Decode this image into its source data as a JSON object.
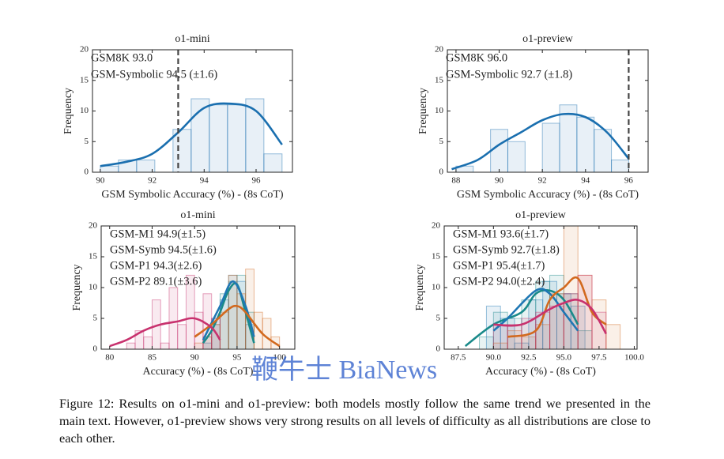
{
  "chart_data": [
    {
      "type": "histogram",
      "title": "o1-mini",
      "xlabel": "GSM Symbolic Accuracy (%) - (8s CoT)",
      "ylabel": "Frequency",
      "xlim": [
        89.7,
        97.4
      ],
      "ylim": [
        0,
        20
      ],
      "xticks": [
        90,
        92,
        94,
        96
      ],
      "yticks": [
        0,
        5,
        10,
        15,
        20
      ],
      "reference": {
        "label": "GSM8K 93.0",
        "value": 93.0
      },
      "series": [
        {
          "name": "GSM-Symbolic 94.5 (±1.6)",
          "color": "#1a6faf",
          "bins": [
            90.0,
            90.7,
            91.4,
            92.1,
            92.8,
            93.5,
            94.2,
            94.9,
            95.6,
            96.3,
            97.0
          ],
          "counts": [
            1,
            2,
            2,
            0,
            7,
            12,
            11,
            11,
            12,
            3
          ],
          "curve_x": [
            90,
            91,
            92,
            93,
            94,
            95,
            96,
            97
          ],
          "curve_y": [
            1,
            1.7,
            3,
            6.5,
            10.5,
            11.2,
            10,
            4.5
          ]
        }
      ]
    },
    {
      "type": "histogram",
      "title": "o1-preview",
      "xlabel": "GSM Symbolic Accuracy (%) - (8s CoT)",
      "ylabel": "Frequency",
      "xlim": [
        87.6,
        96.9
      ],
      "ylim": [
        0,
        20
      ],
      "xticks": [
        88,
        90,
        92,
        94,
        96
      ],
      "yticks": [
        0,
        5,
        10,
        15,
        20
      ],
      "reference": {
        "label": "GSM8K 96.0",
        "value": 96.0
      },
      "series": [
        {
          "name": "GSM-Symbolic 92.7 (±1.8)",
          "color": "#1a6faf",
          "bins": [
            88.0,
            88.8,
            89.6,
            90.4,
            91.2,
            92.0,
            92.8,
            93.6,
            94.4,
            95.2,
            96.0
          ],
          "counts": [
            1,
            0,
            7,
            5,
            0,
            8,
            11,
            9,
            7,
            2
          ],
          "curve_x": [
            87.8,
            89,
            90,
            91,
            92,
            93,
            94,
            95,
            96
          ],
          "curve_y": [
            0.5,
            2,
            4.5,
            6.5,
            8.5,
            9.5,
            9,
            6.5,
            2.2
          ]
        }
      ]
    },
    {
      "type": "histogram",
      "title": "o1-mini",
      "xlabel": "Accuracy (%) - (8s CoT)",
      "ylabel": "Frequency",
      "xlim": [
        79,
        101.8
      ],
      "ylim": [
        0,
        20
      ],
      "xticks": [
        80,
        85,
        90,
        95,
        100
      ],
      "yticks": [
        0,
        5,
        10,
        15,
        20
      ],
      "series": [
        {
          "name": "GSM-M1 94.9(±1.5)",
          "color": "#1a8a8a",
          "bins": [
            91,
            92,
            93,
            94,
            95,
            96,
            97
          ],
          "counts": [
            2,
            4,
            9,
            11,
            12,
            6
          ],
          "curve_x": [
            91,
            92,
            93,
            94,
            95,
            96,
            97
          ],
          "curve_y": [
            1,
            3,
            6,
            9.5,
            10.5,
            6,
            1
          ]
        },
        {
          "name": "GSM-Symb 94.5(±1.6)",
          "color": "#1f77b4",
          "bins": [
            91,
            92,
            93,
            94,
            95,
            96,
            97
          ],
          "counts": [
            1,
            5,
            8,
            12,
            11,
            4
          ],
          "curve_x": [
            91,
            93,
            94.5,
            96,
            97
          ],
          "curve_y": [
            1.5,
            7,
            11,
            7,
            2
          ]
        },
        {
          "name": "GSM-P1 94.3(±2.6)",
          "color": "#d2691e",
          "bins": [
            90,
            91,
            92,
            93,
            94,
            95,
            96,
            97,
            98,
            99,
            100
          ],
          "counts": [
            1,
            2,
            4,
            6,
            12,
            9,
            13,
            6,
            5,
            2
          ],
          "curve_x": [
            90,
            92,
            94,
            95,
            96,
            98,
            100
          ],
          "curve_y": [
            2,
            4,
            6.5,
            7,
            6,
            2.5,
            0.5
          ]
        },
        {
          "name": "GSM-P2 89.1(±3.6)",
          "color": "#c8326e",
          "bins": [
            82,
            83,
            84,
            85,
            86,
            87,
            88,
            89,
            90,
            91,
            92,
            93
          ],
          "counts": [
            1,
            3,
            2,
            8,
            1,
            10,
            4,
            12,
            6,
            9,
            5
          ],
          "curve_x": [
            80,
            82,
            84,
            86,
            88,
            90,
            92,
            93
          ],
          "curve_y": [
            0.5,
            1.5,
            3,
            4,
            4.5,
            5,
            3.5,
            1.5
          ]
        }
      ]
    },
    {
      "type": "histogram",
      "title": "o1-preview",
      "xlabel": "Accuracy (%) - (8s CoT)",
      "ylabel": "Frequency",
      "xlim": [
        86.5,
        100.2
      ],
      "ylim": [
        0,
        20
      ],
      "xticks": [
        {
          "value": 87.5,
          "label": "87.5"
        },
        {
          "value": 90,
          "label": "90.0"
        },
        {
          "value": 92.5,
          "label": "92.5"
        },
        {
          "value": 95,
          "label": "95.0"
        },
        {
          "value": 97.5,
          "label": "97.5"
        },
        {
          "value": 100,
          "label": "100.0"
        }
      ],
      "yticks": [
        0,
        5,
        10,
        15,
        20
      ],
      "series": [
        {
          "name": "GSM-M1 93.6(±1.7)",
          "color": "#1a8a8a",
          "bins": [
            89,
            90,
            91,
            92,
            93,
            94,
            95,
            96,
            97
          ],
          "counts": [
            2,
            6,
            5,
            8,
            11,
            12,
            9,
            3
          ],
          "curve_x": [
            88,
            90,
            92,
            93,
            94,
            95,
            96
          ],
          "curve_y": [
            0.5,
            4,
            6,
            9,
            9.5,
            8,
            4
          ]
        },
        {
          "name": "GSM-Symb 92.7(±1.8)",
          "color": "#1f77b4",
          "bins": [
            89.5,
            90.5,
            91.5,
            92.5,
            93.5,
            94.5,
            95.5,
            96.5
          ],
          "counts": [
            7,
            5,
            1,
            8,
            11,
            9,
            7
          ],
          "curve_x": [
            90,
            91,
            93,
            94,
            95,
            96
          ],
          "curve_y": [
            3,
            5,
            9.5,
            9,
            6,
            3
          ]
        },
        {
          "name": "GSM-P1 95.4(±1.7)",
          "color": "#d2691e",
          "bins": [
            90,
            91,
            92,
            93,
            94,
            95,
            96,
            97,
            98,
            99
          ],
          "counts": [
            1,
            3,
            2,
            4,
            9,
            20,
            12,
            8,
            4
          ],
          "curve_x": [
            91,
            93,
            94,
            95,
            96,
            97,
            98
          ],
          "curve_y": [
            2,
            3,
            8,
            10,
            11.5,
            6,
            4
          ]
        },
        {
          "name": "GSM-P2 94.0(±2.4)",
          "color": "#c8326e",
          "bins": [
            90,
            91,
            92,
            93,
            94,
            95,
            96,
            97,
            98
          ],
          "counts": [
            4,
            4,
            5,
            6,
            7,
            9,
            12,
            6
          ],
          "curve_x": [
            90,
            92,
            94,
            95,
            96,
            97,
            98
          ],
          "curve_y": [
            4,
            4,
            6.5,
            7.5,
            8,
            6.5,
            2.5
          ]
        }
      ]
    }
  ],
  "caption": "Figure 12: Results on o1-mini and o1-preview: both models mostly follow the same trend we presented in the main text. However, o1-preview shows very strong results on all levels of difficulty as all distributions are close to each other.",
  "watermark": "鞭牛士 BiaNews"
}
